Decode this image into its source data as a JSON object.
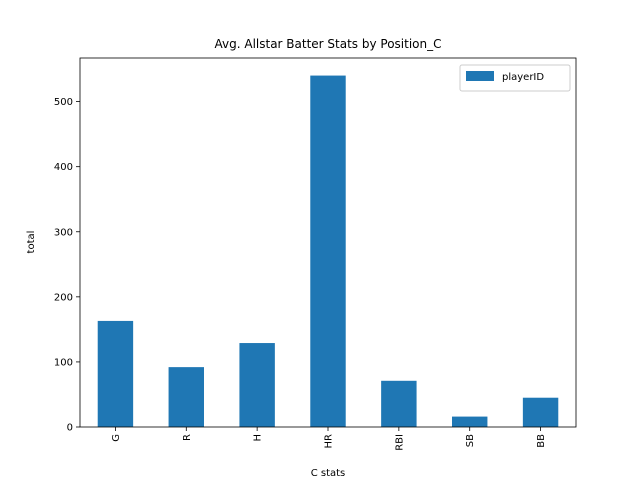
{
  "chart_data": {
    "type": "bar",
    "title": "Avg. Allstar Batter Stats by Position_C",
    "xlabel": "C stats",
    "ylabel": "total",
    "categories": [
      "G",
      "R",
      "H",
      "HR",
      "RBI",
      "SB",
      "BB"
    ],
    "series": [
      {
        "name": "playerID",
        "values": [
          163,
          92,
          129,
          540,
          71,
          16,
          45
        ]
      }
    ],
    "ylim": [
      0,
      567
    ],
    "yticks": [
      0,
      100,
      200,
      300,
      400,
      500
    ],
    "bar_color": "#1f77b4",
    "grid": false,
    "legend_position": "top-right"
  }
}
